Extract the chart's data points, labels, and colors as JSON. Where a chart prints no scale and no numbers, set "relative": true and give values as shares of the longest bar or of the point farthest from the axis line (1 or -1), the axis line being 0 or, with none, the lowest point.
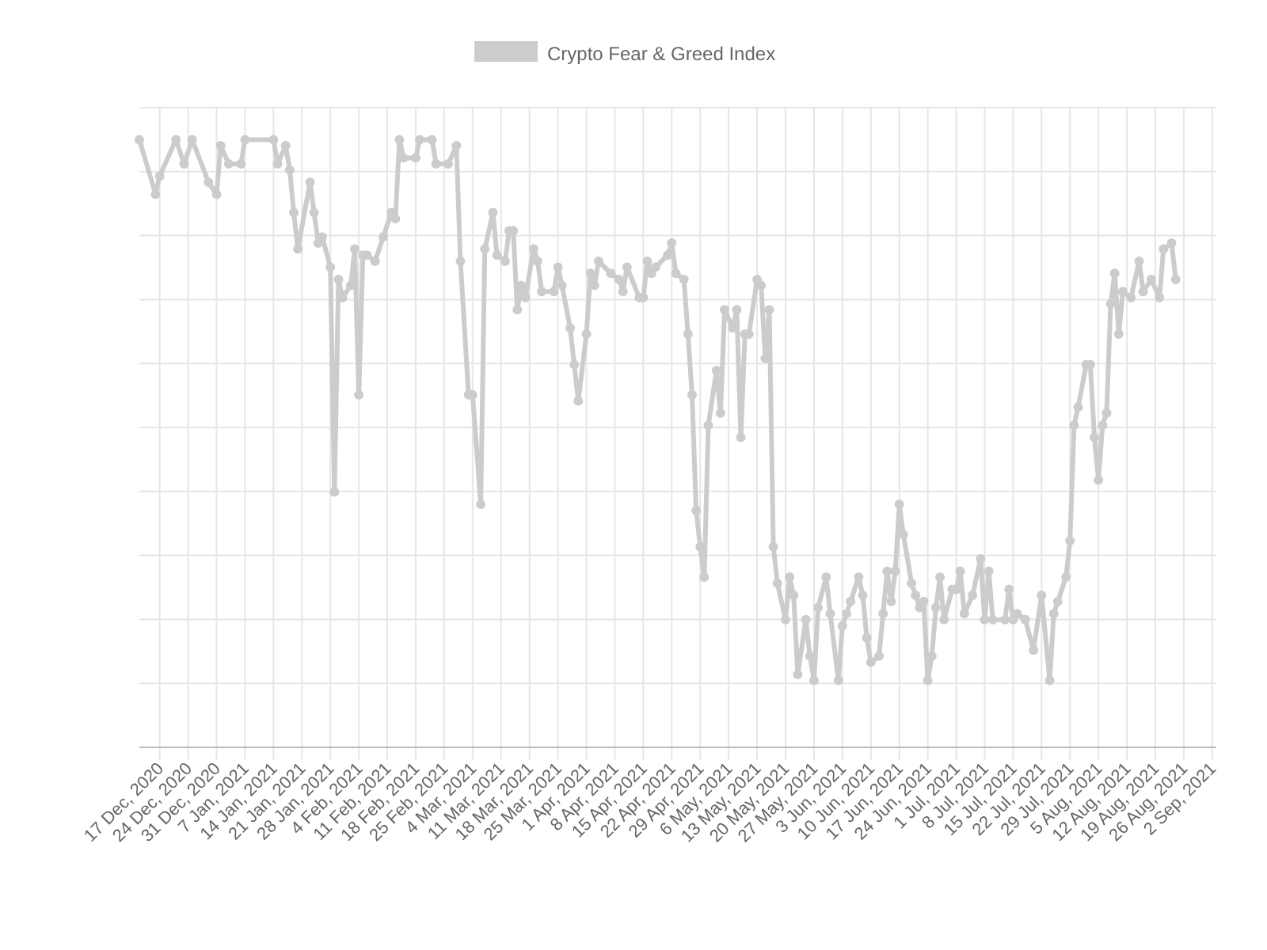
{
  "chart_data": {
    "type": "line",
    "relative": true,
    "grid": true,
    "legend": "top",
    "marker": "circle",
    "line_style": "solid",
    "xlim": [
      "2020-12-12",
      "2021-09-03"
    ],
    "xticks": [
      {
        "value": "2020-12-17",
        "label": "17 Dec, 2020"
      },
      {
        "value": "2020-12-24",
        "label": "24 Dec, 2020"
      },
      {
        "value": "2020-12-31",
        "label": "31 Dec, 2020"
      },
      {
        "value": "2021-01-07",
        "label": "7 Jan, 2021"
      },
      {
        "value": "2021-01-14",
        "label": "14 Jan, 2021"
      },
      {
        "value": "2021-01-21",
        "label": "21 Jan, 2021"
      },
      {
        "value": "2021-01-28",
        "label": "28 Jan, 2021"
      },
      {
        "value": "2021-02-04",
        "label": "4 Feb, 2021"
      },
      {
        "value": "2021-02-11",
        "label": "11 Feb, 2021"
      },
      {
        "value": "2021-02-18",
        "label": "18 Feb, 2021"
      },
      {
        "value": "2021-02-25",
        "label": "25 Feb, 2021"
      },
      {
        "value": "2021-03-04",
        "label": "4 Mar, 2021"
      },
      {
        "value": "2021-03-11",
        "label": "11 Mar, 2021"
      },
      {
        "value": "2021-03-18",
        "label": "18 Mar, 2021"
      },
      {
        "value": "2021-03-25",
        "label": "25 Mar, 2021"
      },
      {
        "value": "2021-04-01",
        "label": "1 Apr, 2021"
      },
      {
        "value": "2021-04-08",
        "label": "8 Apr, 2021"
      },
      {
        "value": "2021-04-15",
        "label": "15 Apr, 2021"
      },
      {
        "value": "2021-04-22",
        "label": "22 Apr, 2021"
      },
      {
        "value": "2021-04-29",
        "label": "29 Apr, 2021"
      },
      {
        "value": "2021-05-06",
        "label": "6 May, 2021"
      },
      {
        "value": "2021-05-13",
        "label": "13 May, 2021"
      },
      {
        "value": "2021-05-20",
        "label": "20 May, 2021"
      },
      {
        "value": "2021-05-27",
        "label": "27 May, 2021"
      },
      {
        "value": "2021-06-03",
        "label": "3 Jun, 2021"
      },
      {
        "value": "2021-06-10",
        "label": "10 Jun, 2021"
      },
      {
        "value": "2021-06-17",
        "label": "17 Jun, 2021"
      },
      {
        "value": "2021-06-24",
        "label": "24 Jun, 2021"
      },
      {
        "value": "2021-07-01",
        "label": "1 Jul, 2021"
      },
      {
        "value": "2021-07-08",
        "label": "8 Jul, 2021"
      },
      {
        "value": "2021-07-15",
        "label": "15 Jul, 2021"
      },
      {
        "value": "2021-07-22",
        "label": "22 Jul, 2021"
      },
      {
        "value": "2021-07-29",
        "label": "29 Jul, 2021"
      },
      {
        "value": "2021-08-05",
        "label": "5 Aug, 2021"
      },
      {
        "value": "2021-08-12",
        "label": "12 Aug, 2021"
      },
      {
        "value": "2021-08-19",
        "label": "19 Aug, 2021"
      },
      {
        "value": "2021-08-26",
        "label": "26 Aug, 2021"
      },
      {
        "value": "2021-09-02",
        "label": "2 Sep, 2021"
      }
    ],
    "series": [
      {
        "name": "Crypto Fear & Greed Index",
        "color": "#cccccc",
        "x": [
          "2020-12-12",
          "2020-12-16",
          "2020-12-17",
          "2020-12-21",
          "2020-12-23",
          "2020-12-25",
          "2020-12-29",
          "2020-12-31",
          "2021-01-01",
          "2021-01-03",
          "2021-01-06",
          "2021-01-07",
          "2021-01-14",
          "2021-01-15",
          "2021-01-17",
          "2021-01-18",
          "2021-01-19",
          "2021-01-20",
          "2021-01-23",
          "2021-01-24",
          "2021-01-25",
          "2021-01-26",
          "2021-01-28",
          "2021-01-29",
          "2021-01-30",
          "2021-01-31",
          "2021-02-02",
          "2021-02-03",
          "2021-02-04",
          "2021-02-05",
          "2021-02-06",
          "2021-02-08",
          "2021-02-10",
          "2021-02-12",
          "2021-02-13",
          "2021-02-14",
          "2021-02-15",
          "2021-02-18",
          "2021-02-19",
          "2021-02-22",
          "2021-02-23",
          "2021-02-26",
          "2021-02-28",
          "2021-03-01",
          "2021-03-03",
          "2021-03-04",
          "2021-03-06",
          "2021-03-07",
          "2021-03-09",
          "2021-03-10",
          "2021-03-12",
          "2021-03-13",
          "2021-03-14",
          "2021-03-15",
          "2021-03-16",
          "2021-03-17",
          "2021-03-19",
          "2021-03-20",
          "2021-03-21",
          "2021-03-24",
          "2021-03-25",
          "2021-03-26",
          "2021-03-28",
          "2021-03-29",
          "2021-03-30",
          "2021-04-01",
          "2021-04-02",
          "2021-04-03",
          "2021-04-04",
          "2021-04-07",
          "2021-04-09",
          "2021-04-10",
          "2021-04-11",
          "2021-04-14",
          "2021-04-15",
          "2021-04-16",
          "2021-04-17",
          "2021-04-18",
          "2021-04-21",
          "2021-04-22",
          "2021-04-23",
          "2021-04-25",
          "2021-04-26",
          "2021-04-27",
          "2021-04-28",
          "2021-04-29",
          "2021-04-30",
          "2021-05-01",
          "2021-05-03",
          "2021-05-04",
          "2021-05-05",
          "2021-05-07",
          "2021-05-08",
          "2021-05-09",
          "2021-05-10",
          "2021-05-11",
          "2021-05-13",
          "2021-05-14",
          "2021-05-15",
          "2021-05-16",
          "2021-05-17",
          "2021-05-18",
          "2021-05-20",
          "2021-05-21",
          "2021-05-22",
          "2021-05-23",
          "2021-05-25",
          "2021-05-26",
          "2021-05-27",
          "2021-05-28",
          "2021-05-30",
          "2021-05-31",
          "2021-06-02",
          "2021-06-03",
          "2021-06-04",
          "2021-06-05",
          "2021-06-07",
          "2021-06-08",
          "2021-06-09",
          "2021-06-10",
          "2021-06-12",
          "2021-06-13",
          "2021-06-14",
          "2021-06-15",
          "2021-06-16",
          "2021-06-17",
          "2021-06-18",
          "2021-06-20",
          "2021-06-21",
          "2021-06-22",
          "2021-06-23",
          "2021-06-24",
          "2021-06-25",
          "2021-06-26",
          "2021-06-27",
          "2021-06-28",
          "2021-06-30",
          "2021-07-01",
          "2021-07-02",
          "2021-07-03",
          "2021-07-05",
          "2021-07-07",
          "2021-07-08",
          "2021-07-09",
          "2021-07-10",
          "2021-07-13",
          "2021-07-14",
          "2021-07-15",
          "2021-07-16",
          "2021-07-18",
          "2021-07-20",
          "2021-07-22",
          "2021-07-24",
          "2021-07-25",
          "2021-07-26",
          "2021-07-28",
          "2021-07-29",
          "2021-07-30",
          "2021-07-31",
          "2021-08-02",
          "2021-08-03",
          "2021-08-04",
          "2021-08-05",
          "2021-08-06",
          "2021-08-07",
          "2021-08-08",
          "2021-08-09",
          "2021-08-10",
          "2021-08-11",
          "2021-08-13",
          "2021-08-15",
          "2021-08-16",
          "2021-08-18",
          "2021-08-20",
          "2021-08-21",
          "2021-08-23",
          "2021-08-24"
        ],
        "values": [
          1.0,
          0.91,
          0.94,
          1,
          0.96,
          1,
          0.93,
          0.91,
          0.99,
          0.96,
          0.96,
          1,
          1,
          0.96,
          0.99,
          0.95,
          0.88,
          0.82,
          0.93,
          0.88,
          0.83,
          0.84,
          0.79,
          0.42,
          0.77,
          0.74,
          0.76,
          0.82,
          0.58,
          0.81,
          0.81,
          0.8,
          0.84,
          0.88,
          0.87,
          1,
          0.97,
          0.97,
          1,
          1,
          0.96,
          0.96,
          0.99,
          0.8,
          0.58,
          0.58,
          0.4,
          0.82,
          0.88,
          0.81,
          0.8,
          0.85,
          0.85,
          0.72,
          0.76,
          0.74,
          0.82,
          0.8,
          0.75,
          0.75,
          0.79,
          0.76,
          0.69,
          0.63,
          0.57,
          0.68,
          0.78,
          0.76,
          0.8,
          0.78,
          0.77,
          0.75,
          0.79,
          0.74,
          0.74,
          0.8,
          0.78,
          0.79,
          0.81,
          0.83,
          0.78,
          0.77,
          0.68,
          0.58,
          0.39,
          0.33,
          0.28,
          0.53,
          0.62,
          0.55,
          0.72,
          0.69,
          0.72,
          0.51,
          0.68,
          0.68,
          0.77,
          0.76,
          0.64,
          0.72,
          0.33,
          0.27,
          0.21,
          0.28,
          0.25,
          0.12,
          0.21,
          0.15,
          0.11,
          0.23,
          0.28,
          0.22,
          0.11,
          0.2,
          0.22,
          0.24,
          0.28,
          0.25,
          0.18,
          0.14,
          0.15,
          0.22,
          0.29,
          0.24,
          0.29,
          0.4,
          0.35,
          0.27,
          0.25,
          0.23,
          0.24,
          0.11,
          0.15,
          0.23,
          0.28,
          0.21,
          0.26,
          0.26,
          0.29,
          0.22,
          0.25,
          0.31,
          0.21,
          0.29,
          0.21,
          0.21,
          0.26,
          0.21,
          0.22,
          0.21,
          0.16,
          0.25,
          0.11,
          0.22,
          0.24,
          0.28,
          0.34,
          0.53,
          0.56,
          0.63,
          0.63,
          0.51,
          0.44,
          0.53,
          0.55,
          0.73,
          0.78,
          0.68,
          0.75,
          0.74,
          0.8,
          0.75,
          0.77,
          0.74,
          0.82,
          0.83,
          0.77
        ]
      }
    ]
  }
}
